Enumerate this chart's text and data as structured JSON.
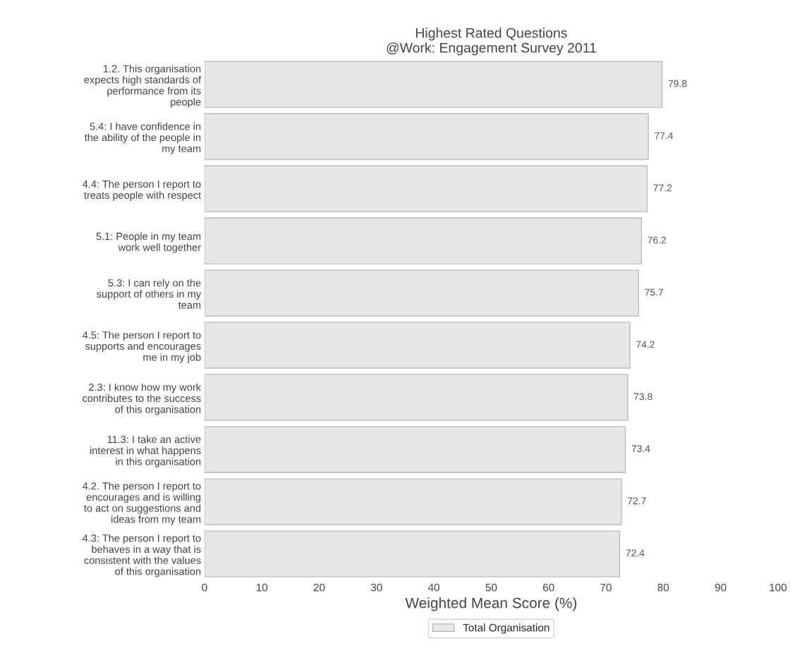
{
  "chart_data": {
    "type": "bar",
    "orientation": "horizontal",
    "title": "Highest Rated Questions",
    "subtitle": "@Work: Engagement Survey 2011",
    "xlabel": "Weighted Mean Score (%)",
    "categories": [
      "1.2. This organisation\nexpects high standards of\nperformance from its\npeople",
      "5.4: I have confidence in\nthe ability of the people in\nmy team",
      "4.4: The person I report to\ntreats people with respect",
      "5.1: People in my team\nwork well together",
      "5.3: I can rely on the\nsupport of others in my\nteam",
      "4.5: The person I report to\nsupports and encourages\nme in my job",
      "2.3: I know how my work\ncontributes to the success\nof this organisation",
      "11.3: I take an active\ninterest in what happens\nin this organisation",
      "4.2. The person I report to\nencourages and is willing\nto act on suggestions and\nideas from my team",
      "4.3: The person I report to\nbehaves in a way that is\nconsistent with the values\nof this organisation"
    ],
    "series": [
      {
        "name": "Total Organisation",
        "color": "#e6e6e6",
        "values": [
          79.8,
          77.4,
          77.2,
          76.2,
          75.7,
          74.2,
          73.8,
          73.4,
          72.7,
          72.4
        ]
      }
    ],
    "xlim": [
      0,
      100
    ],
    "xticks": [
      0,
      10,
      20,
      30,
      40,
      50,
      60,
      70,
      80,
      90,
      100
    ],
    "data_labels": true,
    "grid": false,
    "legend": "bottom"
  }
}
